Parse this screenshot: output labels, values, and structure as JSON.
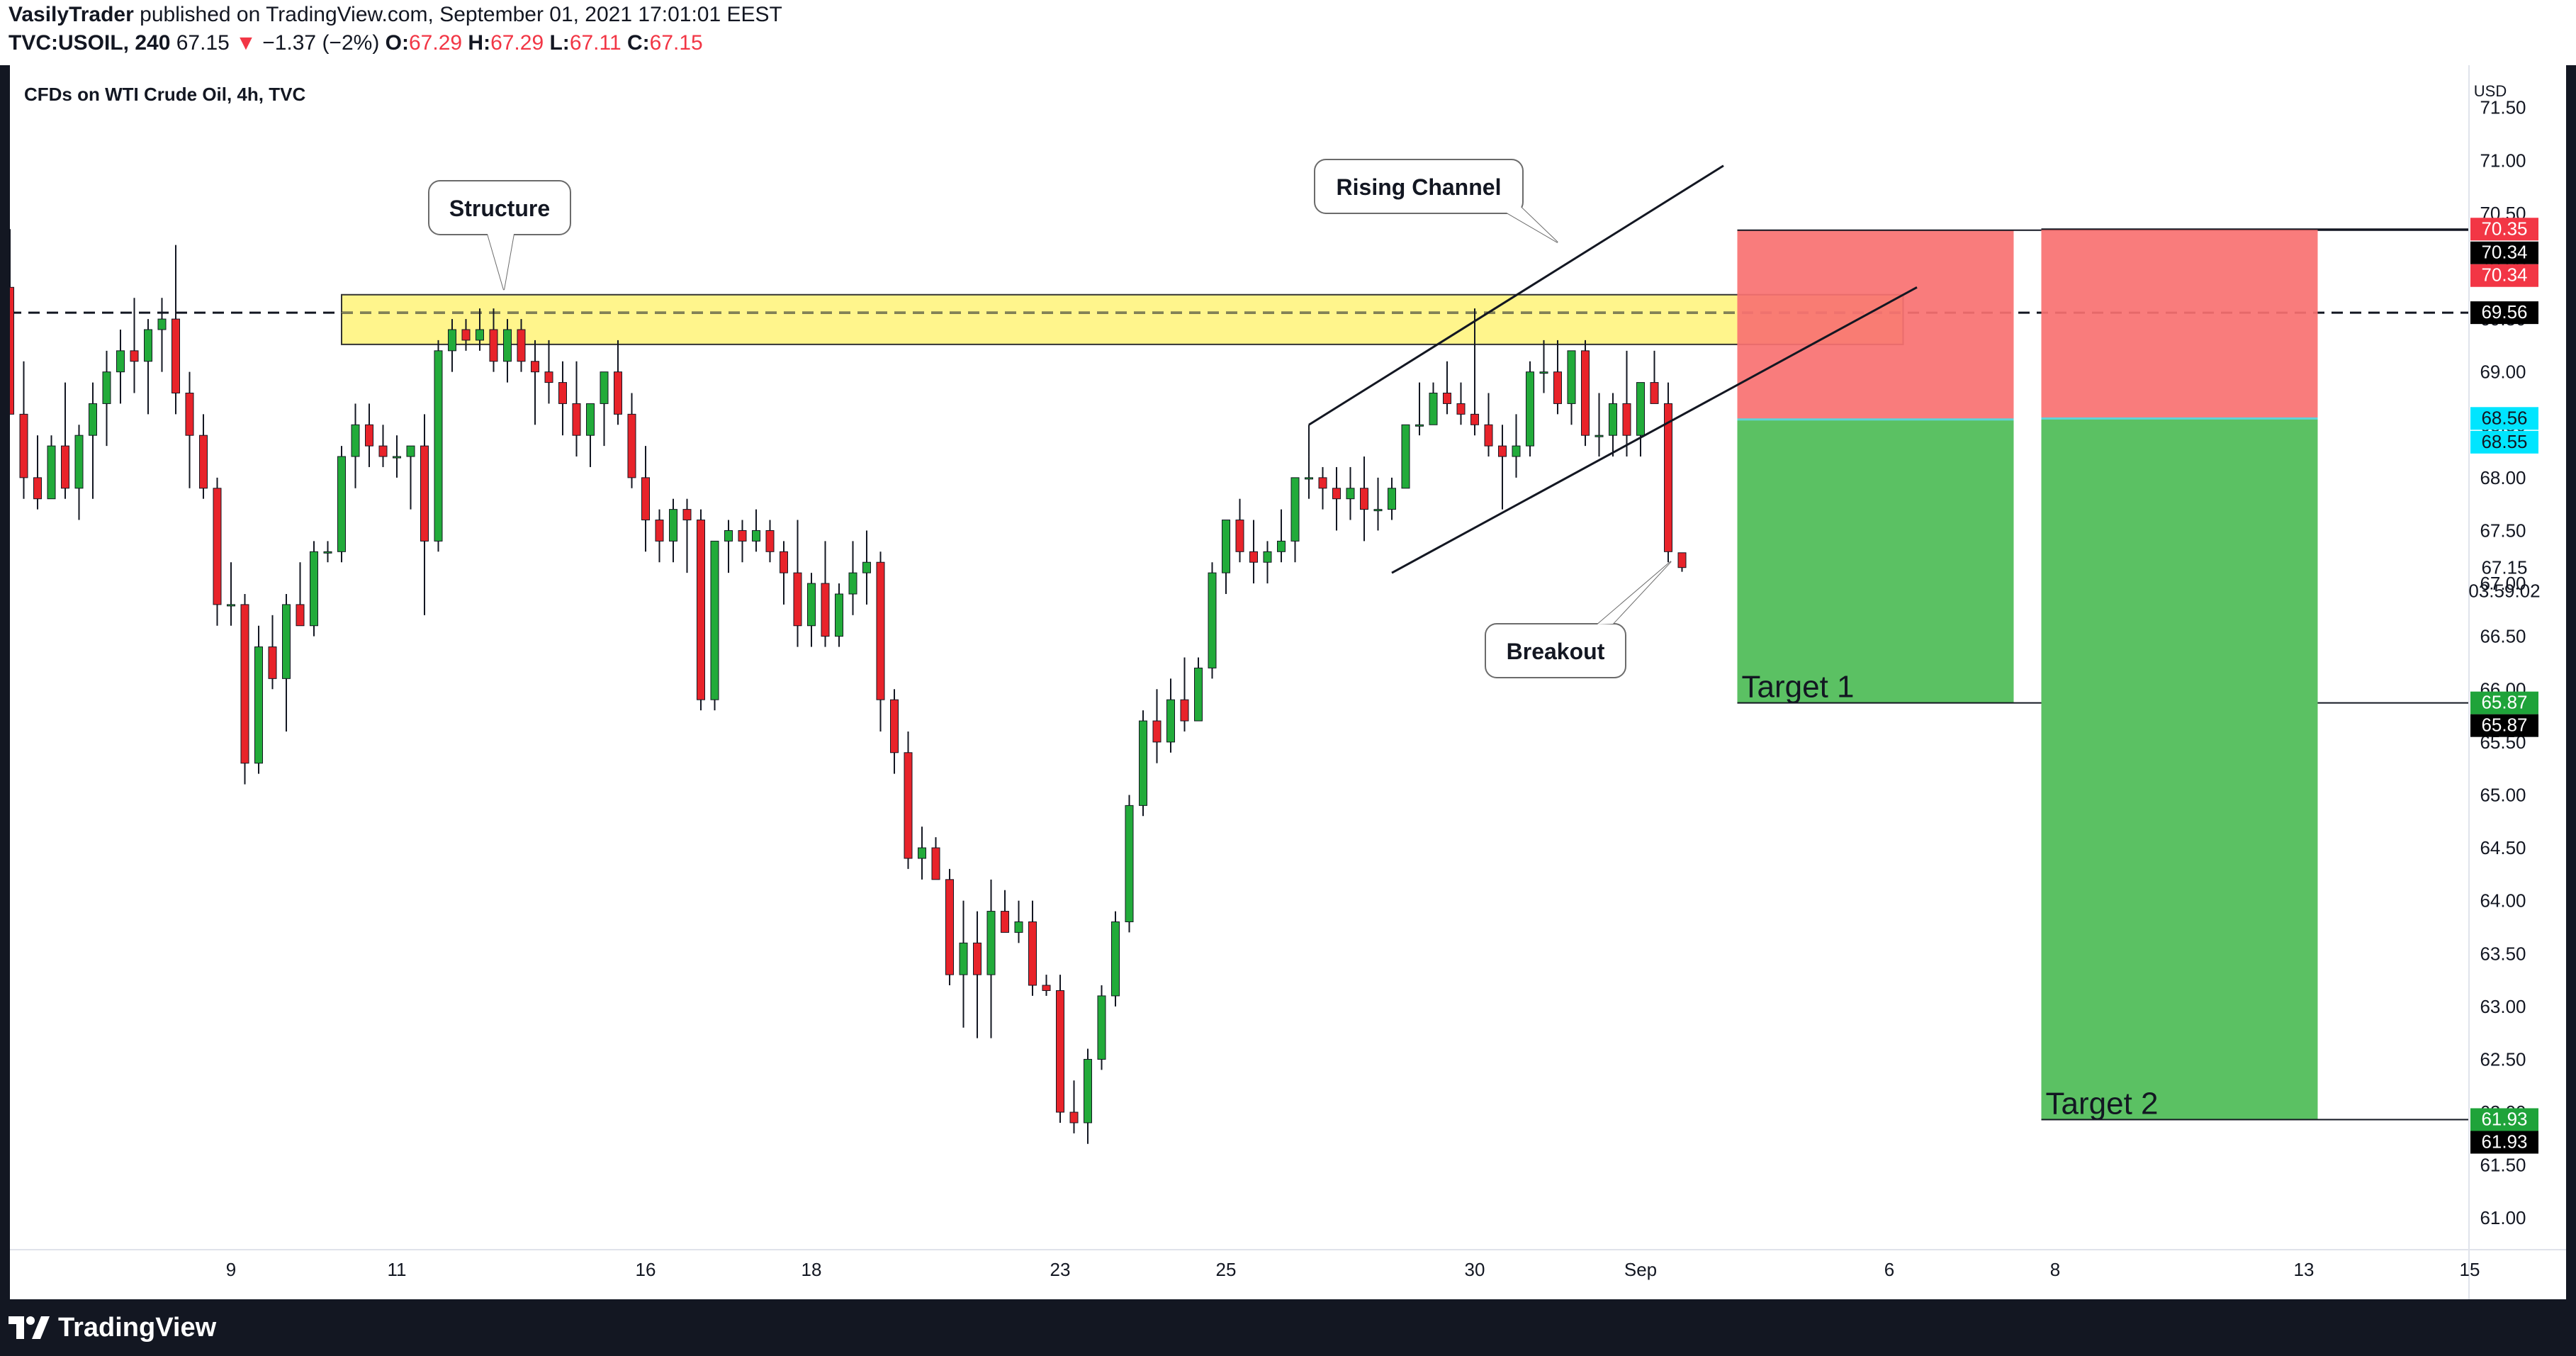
{
  "header": {
    "author": "VasilyTrader",
    "published_text": "published on TradingView.com, September 01, 2021 17:01:01 EEST",
    "symbol": "TVC:USOIL, 240",
    "last_price": "67.15",
    "change_arrow": "▼",
    "change": "−1.37 (−2%)",
    "o_label": "O:",
    "o_value": "67.29",
    "h_label": "H:",
    "h_value": "67.29",
    "l_label": "L:",
    "l_value": "67.11",
    "c_label": "C:",
    "c_value": "67.15"
  },
  "footer": {
    "brand": "TradingView"
  },
  "colors": {
    "up": "#22ab3a",
    "down": "#e8232a",
    "zone": "#fff480",
    "zone_border": "#333333",
    "stop": "#f87171",
    "target": "#5bc163",
    "price_red": "#f23645",
    "price_green": "#1fa33a",
    "price_cyan": "#00e5ff"
  },
  "chart_data": {
    "type": "candlestick",
    "title": "CFDs on WTI Crude Oil, 4h, TVC",
    "currency": "USD",
    "ylim": [
      60.7,
      71.9
    ],
    "y_ticks": [
      "61.00",
      "61.50",
      "62.00",
      "62.50",
      "63.00",
      "63.50",
      "64.00",
      "64.50",
      "65.00",
      "65.50",
      "66.00",
      "66.50",
      "67.00",
      "67.50",
      "68.00",
      "68.50",
      "69.00",
      "69.50",
      "70.00",
      "70.50",
      "71.00",
      "71.50"
    ],
    "x_ticks": [
      {
        "label": "9",
        "bar": 16
      },
      {
        "label": "11",
        "bar": 28
      },
      {
        "label": "16",
        "bar": 46
      },
      {
        "label": "18",
        "bar": 58
      },
      {
        "label": "23",
        "bar": 76
      },
      {
        "label": "25",
        "bar": 88
      },
      {
        "label": "30",
        "bar": 106
      },
      {
        "label": "Sep",
        "bar": 118
      },
      {
        "label": "6",
        "bar": 136
      },
      {
        "label": "8",
        "bar": 148
      },
      {
        "label": "13",
        "bar": 166
      },
      {
        "label": "15",
        "bar": 178
      }
    ],
    "candles": [
      [
        69.8,
        70.35,
        68.6,
        68.6
      ],
      [
        68.6,
        69.1,
        67.8,
        68.0
      ],
      [
        68.0,
        68.4,
        67.7,
        67.8
      ],
      [
        67.8,
        68.4,
        67.8,
        68.3
      ],
      [
        68.3,
        68.9,
        67.8,
        67.9
      ],
      [
        67.9,
        68.5,
        67.6,
        68.4
      ],
      [
        68.4,
        68.9,
        67.8,
        68.7
      ],
      [
        68.7,
        69.2,
        68.3,
        69.0
      ],
      [
        69.0,
        69.4,
        68.7,
        69.2
      ],
      [
        69.2,
        69.7,
        68.8,
        69.1
      ],
      [
        69.1,
        69.5,
        68.6,
        69.4
      ],
      [
        69.4,
        69.7,
        69.0,
        69.5
      ],
      [
        69.5,
        70.2,
        68.6,
        68.8
      ],
      [
        68.8,
        69.0,
        67.9,
        68.4
      ],
      [
        68.4,
        68.6,
        67.8,
        67.9
      ],
      [
        67.9,
        68.0,
        66.6,
        66.8
      ],
      [
        66.8,
        67.2,
        66.6,
        66.8
      ],
      [
        66.8,
        66.9,
        65.1,
        65.3
      ],
      [
        65.3,
        66.6,
        65.2,
        66.4
      ],
      [
        66.4,
        66.7,
        66.0,
        66.1
      ],
      [
        66.1,
        66.9,
        65.6,
        66.8
      ],
      [
        66.8,
        67.2,
        66.6,
        66.6
      ],
      [
        66.6,
        67.4,
        66.5,
        67.3
      ],
      [
        67.3,
        67.4,
        67.2,
        67.3
      ],
      [
        67.3,
        68.3,
        67.2,
        68.2
      ],
      [
        68.2,
        68.7,
        67.9,
        68.5
      ],
      [
        68.5,
        68.7,
        68.1,
        68.3
      ],
      [
        68.3,
        68.5,
        68.1,
        68.2
      ],
      [
        68.2,
        68.4,
        68.0,
        68.2
      ],
      [
        68.2,
        68.3,
        67.7,
        68.3
      ],
      [
        68.3,
        68.6,
        66.7,
        67.4
      ],
      [
        67.4,
        69.3,
        67.3,
        69.2
      ],
      [
        69.2,
        69.5,
        69.0,
        69.4
      ],
      [
        69.4,
        69.5,
        69.2,
        69.3
      ],
      [
        69.3,
        69.6,
        69.2,
        69.4
      ],
      [
        69.4,
        69.6,
        69.0,
        69.1
      ],
      [
        69.1,
        69.5,
        68.9,
        69.4
      ],
      [
        69.4,
        69.5,
        69.0,
        69.1
      ],
      [
        69.1,
        69.3,
        68.5,
        69.0
      ],
      [
        69.0,
        69.3,
        68.7,
        68.9
      ],
      [
        68.9,
        69.1,
        68.4,
        68.7
      ],
      [
        68.7,
        69.1,
        68.2,
        68.4
      ],
      [
        68.4,
        68.6,
        68.1,
        68.7
      ],
      [
        68.7,
        69.0,
        68.3,
        69.0
      ],
      [
        69.0,
        69.3,
        68.5,
        68.6
      ],
      [
        68.6,
        68.8,
        67.9,
        68.0
      ],
      [
        68.0,
        68.3,
        67.3,
        67.6
      ],
      [
        67.6,
        67.7,
        67.2,
        67.4
      ],
      [
        67.4,
        67.8,
        67.2,
        67.7
      ],
      [
        67.7,
        67.8,
        67.1,
        67.6
      ],
      [
        67.6,
        67.7,
        65.8,
        65.9
      ],
      [
        65.9,
        67.4,
        65.8,
        67.4
      ],
      [
        67.4,
        67.6,
        67.1,
        67.5
      ],
      [
        67.5,
        67.6,
        67.2,
        67.4
      ],
      [
        67.4,
        67.7,
        67.3,
        67.5
      ],
      [
        67.5,
        67.6,
        67.2,
        67.3
      ],
      [
        67.3,
        67.4,
        66.8,
        67.1
      ],
      [
        67.1,
        67.6,
        66.4,
        66.6
      ],
      [
        66.6,
        67.1,
        66.4,
        67.0
      ],
      [
        67.0,
        67.4,
        66.4,
        66.5
      ],
      [
        66.5,
        67.0,
        66.4,
        66.9
      ],
      [
        66.9,
        67.4,
        66.7,
        67.1
      ],
      [
        67.1,
        67.5,
        66.8,
        67.2
      ],
      [
        67.2,
        67.3,
        65.6,
        65.9
      ],
      [
        65.9,
        66.0,
        65.2,
        65.4
      ],
      [
        65.4,
        65.6,
        64.3,
        64.4
      ],
      [
        64.4,
        64.7,
        64.2,
        64.5
      ],
      [
        64.5,
        64.6,
        64.2,
        64.2
      ],
      [
        64.2,
        64.3,
        63.2,
        63.3
      ],
      [
        63.3,
        64.0,
        62.8,
        63.6
      ],
      [
        63.6,
        63.9,
        62.7,
        63.3
      ],
      [
        63.3,
        64.2,
        62.7,
        63.9
      ],
      [
        63.9,
        64.1,
        63.7,
        63.7
      ],
      [
        63.7,
        64.0,
        63.6,
        63.8
      ],
      [
        63.8,
        64.0,
        63.1,
        63.2
      ],
      [
        63.2,
        63.3,
        63.1,
        63.15
      ],
      [
        63.15,
        63.3,
        61.9,
        62.0
      ],
      [
        62.0,
        62.3,
        61.8,
        61.9
      ],
      [
        61.9,
        62.6,
        61.7,
        62.5
      ],
      [
        62.5,
        63.2,
        62.4,
        63.1
      ],
      [
        63.1,
        63.9,
        63.0,
        63.8
      ],
      [
        63.8,
        65.0,
        63.7,
        64.9
      ],
      [
        64.9,
        65.8,
        64.8,
        65.7
      ],
      [
        65.7,
        66.0,
        65.3,
        65.5
      ],
      [
        65.5,
        66.1,
        65.4,
        65.9
      ],
      [
        65.9,
        66.3,
        65.6,
        65.7
      ],
      [
        65.7,
        66.3,
        65.7,
        66.2
      ],
      [
        66.2,
        67.2,
        66.1,
        67.1
      ],
      [
        67.1,
        67.6,
        66.9,
        67.6
      ],
      [
        67.6,
        67.8,
        67.2,
        67.3
      ],
      [
        67.3,
        67.6,
        67.0,
        67.2
      ],
      [
        67.2,
        67.4,
        67.0,
        67.3
      ],
      [
        67.3,
        67.7,
        67.2,
        67.4
      ],
      [
        67.4,
        67.9,
        67.2,
        68.0
      ],
      [
        68.0,
        68.2,
        67.8,
        68.0
      ],
      [
        68.0,
        68.1,
        67.7,
        67.9
      ],
      [
        67.9,
        68.1,
        67.5,
        67.8
      ],
      [
        67.8,
        68.1,
        67.6,
        67.9
      ],
      [
        67.9,
        68.2,
        67.4,
        67.7
      ],
      [
        67.7,
        68.0,
        67.5,
        67.7
      ],
      [
        67.7,
        68.0,
        67.6,
        67.9
      ],
      [
        67.9,
        68.5,
        67.9,
        68.5
      ],
      [
        68.5,
        68.9,
        68.4,
        68.5
      ],
      [
        68.5,
        68.9,
        68.5,
        68.8
      ],
      [
        68.8,
        69.1,
        68.6,
        68.7
      ],
      [
        68.7,
        68.9,
        68.5,
        68.6
      ],
      [
        68.6,
        69.6,
        68.4,
        68.5
      ],
      [
        68.5,
        68.8,
        68.2,
        68.3
      ],
      [
        68.3,
        68.5,
        67.7,
        68.2
      ],
      [
        68.2,
        68.6,
        68.0,
        68.3
      ],
      [
        68.3,
        69.1,
        68.2,
        69.0
      ],
      [
        69.0,
        69.3,
        68.8,
        69.0
      ],
      [
        69.0,
        69.3,
        68.6,
        68.7
      ],
      [
        68.7,
        69.2,
        68.5,
        69.2
      ],
      [
        69.2,
        69.3,
        68.3,
        68.4
      ],
      [
        68.4,
        68.8,
        68.2,
        68.4
      ],
      [
        68.4,
        68.8,
        68.2,
        68.7
      ],
      [
        68.7,
        69.2,
        68.2,
        68.4
      ],
      [
        68.4,
        68.9,
        68.2,
        68.9
      ],
      [
        68.9,
        69.2,
        68.8,
        68.7
      ],
      [
        68.7,
        68.9,
        67.2,
        67.3
      ],
      [
        67.29,
        67.29,
        67.11,
        67.15
      ]
    ],
    "resistance_zone": {
      "label": "Structure",
      "y_top": 69.73,
      "y_bottom": 69.26,
      "from_bar": 24,
      "to_bar": 137
    },
    "dashed_level": 69.56,
    "channel": {
      "label": "Rising Channel",
      "upper": [
        {
          "bar": 94,
          "price": 68.5
        },
        {
          "bar": 124,
          "price": 70.95
        }
      ],
      "lower": [
        {
          "bar": 100,
          "price": 67.1
        },
        {
          "bar": 138,
          "price": 69.8
        }
      ],
      "left_edge": [
        {
          "bar": 94,
          "price": 68.5
        },
        {
          "bar": 94,
          "price": 68.2
        }
      ]
    },
    "breakout_label": "Breakout",
    "positions": [
      {
        "from_bar": 125,
        "to_bar": 145,
        "entry": 68.55,
        "stop": 70.34,
        "target": 65.87,
        "label": "Target 1"
      },
      {
        "from_bar": 147,
        "to_bar": 167,
        "entry": 68.56,
        "stop": 70.35,
        "target": 61.93,
        "label": "Target 2"
      }
    ],
    "price_labels": [
      {
        "text": "70.35",
        "price": 70.35,
        "bg": "#f23645",
        "fg": "#ffffff"
      },
      {
        "text": "70.34",
        "price": 70.34,
        "bg": "#000000",
        "fg": "#ffffff"
      },
      {
        "text": "70.34",
        "price": 70.34,
        "bg": "#f23645",
        "fg": "#ffffff"
      },
      {
        "text": "69.56",
        "price": 69.56,
        "bg": "#000000",
        "fg": "#ffffff"
      },
      {
        "text": "68.56",
        "price": 68.56,
        "bg": "#00e5ff",
        "fg": "#131722"
      },
      {
        "text": "68.55",
        "price": 68.55,
        "bg": "#00e5ff",
        "fg": "#131722"
      },
      {
        "text": "67.15",
        "price": 67.15,
        "bg": "none",
        "fg": "#131722"
      },
      {
        "text": "03:59:02",
        "price": 66.93,
        "bg": "none",
        "fg": "#131722"
      },
      {
        "text": "65.87",
        "price": 65.87,
        "bg": "#1fa33a",
        "fg": "#ffffff"
      },
      {
        "text": "65.87",
        "price": 65.87,
        "bg": "#000000",
        "fg": "#ffffff"
      },
      {
        "text": "61.93",
        "price": 61.93,
        "bg": "#1fa33a",
        "fg": "#ffffff"
      },
      {
        "text": "61.93",
        "price": 61.93,
        "bg": "#000000",
        "fg": "#ffffff"
      }
    ]
  }
}
